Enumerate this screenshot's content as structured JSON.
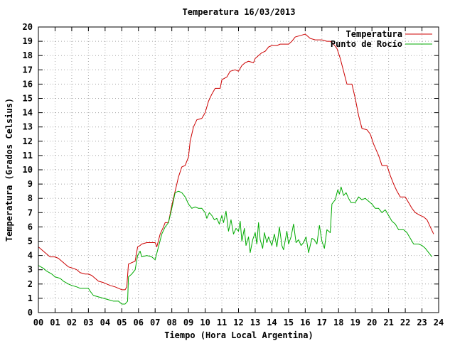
{
  "chart_data": {
    "type": "line",
    "title": "Temperatura 16/03/2013",
    "xlabel": "Tiempo (Hora Local Argentina)",
    "ylabel": "Temperatura (Grados Celsius)",
    "xlim": [
      0,
      24
    ],
    "ylim": [
      0,
      20
    ],
    "grid": true,
    "legend_position": "top-right",
    "x_tick_labels": [
      "00",
      "01",
      "02",
      "03",
      "04",
      "05",
      "06",
      "07",
      "08",
      "09",
      "10",
      "11",
      "12",
      "13",
      "14",
      "15",
      "16",
      "17",
      "18",
      "19",
      "20",
      "21",
      "22",
      "23",
      "24"
    ],
    "y_tick_labels": [
      "0",
      "1",
      "2",
      "3",
      "4",
      "5",
      "6",
      "7",
      "8",
      "9",
      "10",
      "11",
      "12",
      "13",
      "14",
      "15",
      "16",
      "17",
      "18",
      "19",
      "20"
    ],
    "series": [
      {
        "name": "Temperatura",
        "color": "#cc0000",
        "points": [
          [
            0.0,
            4.6
          ],
          [
            0.3,
            4.3
          ],
          [
            0.5,
            4.1
          ],
          [
            0.7,
            3.9
          ],
          [
            1.0,
            3.9
          ],
          [
            1.2,
            3.8
          ],
          [
            1.4,
            3.6
          ],
          [
            1.6,
            3.4
          ],
          [
            1.8,
            3.2
          ],
          [
            2.1,
            3.1
          ],
          [
            2.3,
            3.0
          ],
          [
            2.5,
            2.8
          ],
          [
            2.8,
            2.7
          ],
          [
            3.0,
            2.7
          ],
          [
            3.2,
            2.6
          ],
          [
            3.4,
            2.4
          ],
          [
            3.6,
            2.2
          ],
          [
            3.9,
            2.1
          ],
          [
            4.1,
            2.0
          ],
          [
            4.3,
            1.9
          ],
          [
            4.6,
            1.8
          ],
          [
            4.8,
            1.7
          ],
          [
            5.0,
            1.6
          ],
          [
            5.2,
            1.6
          ],
          [
            5.3,
            1.8
          ],
          [
            5.4,
            3.4
          ],
          [
            5.6,
            3.5
          ],
          [
            5.8,
            3.6
          ],
          [
            5.95,
            4.6
          ],
          [
            6.1,
            4.7
          ],
          [
            6.2,
            4.8
          ],
          [
            6.5,
            4.9
          ],
          [
            6.8,
            4.9
          ],
          [
            7.0,
            4.9
          ],
          [
            7.1,
            4.6
          ],
          [
            7.3,
            5.5
          ],
          [
            7.5,
            6.0
          ],
          [
            7.6,
            6.3
          ],
          [
            7.8,
            6.3
          ],
          [
            8.0,
            7.5
          ],
          [
            8.2,
            8.5
          ],
          [
            8.4,
            9.5
          ],
          [
            8.6,
            10.2
          ],
          [
            8.8,
            10.3
          ],
          [
            9.0,
            10.9
          ],
          [
            9.1,
            12.0
          ],
          [
            9.3,
            13.0
          ],
          [
            9.5,
            13.5
          ],
          [
            9.8,
            13.6
          ],
          [
            10.0,
            14.0
          ],
          [
            10.2,
            14.8
          ],
          [
            10.4,
            15.3
          ],
          [
            10.6,
            15.7
          ],
          [
            10.9,
            15.7
          ],
          [
            11.0,
            16.3
          ],
          [
            11.3,
            16.5
          ],
          [
            11.5,
            16.9
          ],
          [
            11.8,
            17.0
          ],
          [
            12.0,
            16.9
          ],
          [
            12.2,
            17.3
          ],
          [
            12.4,
            17.5
          ],
          [
            12.6,
            17.6
          ],
          [
            12.9,
            17.5
          ],
          [
            13.0,
            17.8
          ],
          [
            13.2,
            18.0
          ],
          [
            13.4,
            18.2
          ],
          [
            13.6,
            18.3
          ],
          [
            13.8,
            18.6
          ],
          [
            14.0,
            18.7
          ],
          [
            14.3,
            18.7
          ],
          [
            14.5,
            18.8
          ],
          [
            14.7,
            18.8
          ],
          [
            15.0,
            18.8
          ],
          [
            15.2,
            19.0
          ],
          [
            15.4,
            19.3
          ],
          [
            15.7,
            19.4
          ],
          [
            16.0,
            19.5
          ],
          [
            16.3,
            19.2
          ],
          [
            16.6,
            19.1
          ],
          [
            17.0,
            19.1
          ],
          [
            17.3,
            19.0
          ],
          [
            17.5,
            19.0
          ],
          [
            17.7,
            18.8
          ],
          [
            17.9,
            18.5
          ],
          [
            18.1,
            17.8
          ],
          [
            18.3,
            16.9
          ],
          [
            18.5,
            16.0
          ],
          [
            18.8,
            16.0
          ],
          [
            19.0,
            15.0
          ],
          [
            19.2,
            13.8
          ],
          [
            19.4,
            12.9
          ],
          [
            19.7,
            12.8
          ],
          [
            19.9,
            12.5
          ],
          [
            20.1,
            11.8
          ],
          [
            20.4,
            11.0
          ],
          [
            20.6,
            10.3
          ],
          [
            20.9,
            10.3
          ],
          [
            21.1,
            9.6
          ],
          [
            21.3,
            9.0
          ],
          [
            21.5,
            8.5
          ],
          [
            21.7,
            8.1
          ],
          [
            22.0,
            8.1
          ],
          [
            22.2,
            7.7
          ],
          [
            22.4,
            7.3
          ],
          [
            22.6,
            7.0
          ],
          [
            22.9,
            6.8
          ],
          [
            23.1,
            6.7
          ],
          [
            23.3,
            6.5
          ],
          [
            23.5,
            6.0
          ],
          [
            23.7,
            5.5
          ]
        ]
      },
      {
        "name": "Punto de Rocío",
        "color": "#00aa00",
        "points": [
          [
            0.0,
            3.3
          ],
          [
            0.3,
            3.1
          ],
          [
            0.5,
            2.9
          ],
          [
            0.8,
            2.7
          ],
          [
            1.0,
            2.5
          ],
          [
            1.3,
            2.4
          ],
          [
            1.5,
            2.2
          ],
          [
            1.8,
            2.0
          ],
          [
            2.0,
            1.9
          ],
          [
            2.3,
            1.8
          ],
          [
            2.5,
            1.7
          ],
          [
            3.0,
            1.7
          ],
          [
            3.1,
            1.5
          ],
          [
            3.3,
            1.2
          ],
          [
            3.6,
            1.1
          ],
          [
            3.9,
            1.0
          ],
          [
            4.2,
            0.9
          ],
          [
            4.5,
            0.8
          ],
          [
            4.8,
            0.8
          ],
          [
            5.0,
            0.6
          ],
          [
            5.2,
            0.6
          ],
          [
            5.35,
            0.8
          ],
          [
            5.4,
            2.5
          ],
          [
            5.6,
            2.7
          ],
          [
            5.8,
            3.0
          ],
          [
            5.95,
            4.0
          ],
          [
            6.1,
            4.3
          ],
          [
            6.2,
            3.9
          ],
          [
            6.5,
            4.0
          ],
          [
            6.8,
            3.9
          ],
          [
            7.0,
            3.7
          ],
          [
            7.2,
            4.6
          ],
          [
            7.4,
            5.5
          ],
          [
            7.6,
            6.0
          ],
          [
            7.8,
            6.3
          ],
          [
            8.0,
            7.3
          ],
          [
            8.2,
            8.4
          ],
          [
            8.4,
            8.5
          ],
          [
            8.6,
            8.4
          ],
          [
            8.8,
            8.1
          ],
          [
            9.0,
            7.6
          ],
          [
            9.2,
            7.3
          ],
          [
            9.4,
            7.4
          ],
          [
            9.6,
            7.3
          ],
          [
            9.8,
            7.3
          ],
          [
            10.0,
            7.0
          ],
          [
            10.1,
            6.6
          ],
          [
            10.25,
            7.0
          ],
          [
            10.4,
            6.8
          ],
          [
            10.55,
            6.5
          ],
          [
            10.7,
            6.6
          ],
          [
            10.85,
            6.2
          ],
          [
            11.0,
            6.8
          ],
          [
            11.1,
            6.3
          ],
          [
            11.25,
            7.1
          ],
          [
            11.4,
            5.7
          ],
          [
            11.55,
            6.5
          ],
          [
            11.7,
            5.5
          ],
          [
            11.85,
            5.9
          ],
          [
            12.0,
            5.7
          ],
          [
            12.1,
            6.4
          ],
          [
            12.2,
            5.0
          ],
          [
            12.35,
            5.9
          ],
          [
            12.45,
            4.7
          ],
          [
            12.6,
            5.3
          ],
          [
            12.7,
            4.2
          ],
          [
            12.85,
            5.1
          ],
          [
            13.0,
            5.6
          ],
          [
            13.1,
            4.8
          ],
          [
            13.2,
            6.3
          ],
          [
            13.3,
            5.1
          ],
          [
            13.45,
            4.5
          ],
          [
            13.55,
            5.6
          ],
          [
            13.7,
            4.9
          ],
          [
            13.8,
            5.3
          ],
          [
            14.0,
            4.7
          ],
          [
            14.15,
            5.5
          ],
          [
            14.3,
            4.6
          ],
          [
            14.45,
            6.0
          ],
          [
            14.6,
            4.7
          ],
          [
            14.7,
            4.4
          ],
          [
            14.9,
            5.7
          ],
          [
            15.0,
            4.8
          ],
          [
            15.15,
            5.3
          ],
          [
            15.3,
            6.2
          ],
          [
            15.45,
            4.9
          ],
          [
            15.6,
            5.1
          ],
          [
            15.75,
            4.7
          ],
          [
            15.9,
            4.9
          ],
          [
            16.05,
            5.3
          ],
          [
            16.2,
            4.2
          ],
          [
            16.4,
            5.2
          ],
          [
            16.55,
            5.1
          ],
          [
            16.7,
            4.8
          ],
          [
            16.85,
            6.1
          ],
          [
            17.0,
            5.0
          ],
          [
            17.15,
            4.5
          ],
          [
            17.3,
            5.8
          ],
          [
            17.5,
            5.6
          ],
          [
            17.6,
            7.6
          ],
          [
            17.8,
            7.9
          ],
          [
            17.95,
            8.6
          ],
          [
            18.05,
            8.3
          ],
          [
            18.15,
            8.8
          ],
          [
            18.3,
            8.2
          ],
          [
            18.45,
            8.4
          ],
          [
            18.6,
            8.0
          ],
          [
            18.75,
            7.7
          ],
          [
            19.0,
            7.7
          ],
          [
            19.2,
            8.1
          ],
          [
            19.4,
            7.9
          ],
          [
            19.6,
            8.0
          ],
          [
            19.8,
            7.8
          ],
          [
            20.0,
            7.6
          ],
          [
            20.2,
            7.3
          ],
          [
            20.4,
            7.3
          ],
          [
            20.6,
            7.0
          ],
          [
            20.8,
            7.2
          ],
          [
            21.0,
            6.8
          ],
          [
            21.2,
            6.4
          ],
          [
            21.4,
            6.2
          ],
          [
            21.6,
            5.8
          ],
          [
            21.9,
            5.8
          ],
          [
            22.1,
            5.6
          ],
          [
            22.3,
            5.2
          ],
          [
            22.5,
            4.8
          ],
          [
            22.8,
            4.8
          ],
          [
            23.0,
            4.7
          ],
          [
            23.2,
            4.5
          ],
          [
            23.4,
            4.2
          ],
          [
            23.6,
            3.9
          ]
        ]
      }
    ]
  }
}
